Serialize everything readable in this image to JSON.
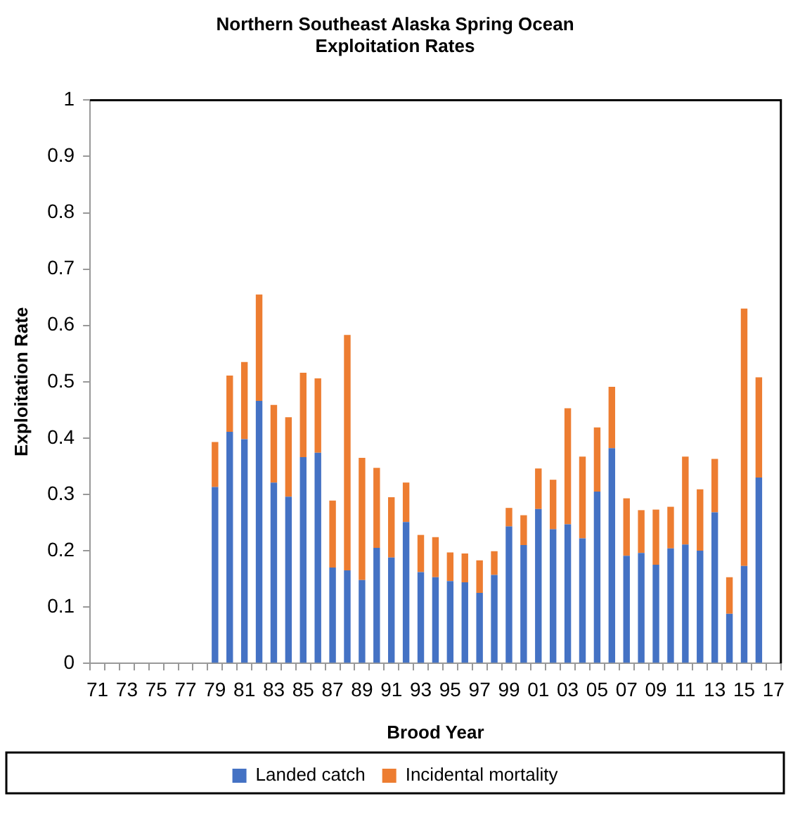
{
  "chart_data": {
    "type": "bar",
    "title": "Northern Southeast Alaska Spring Ocean Exploitation Rates",
    "xlabel": "Brood Year",
    "ylabel": "Exploitation Rate",
    "categories": [
      "71",
      null,
      "73",
      null,
      "75",
      null,
      "77",
      null,
      "79",
      null,
      "81",
      null,
      "83",
      null,
      "85",
      null,
      "87",
      null,
      "89",
      null,
      "91",
      null,
      "93",
      null,
      "95",
      null,
      "97",
      null,
      "99",
      null,
      "01",
      null,
      "03",
      null,
      "05",
      null,
      "07",
      null,
      "09",
      null,
      "11",
      null,
      "13",
      null,
      "15",
      null,
      "17"
    ],
    "stacked": true,
    "ylim": [
      0,
      1
    ],
    "yticks": [
      0,
      0.1,
      0.2,
      0.3,
      0.4,
      0.5,
      0.6,
      0.7,
      0.8,
      0.9,
      1
    ],
    "legend": "bottom",
    "series": [
      {
        "name": "Landed catch",
        "color": "#4472c4",
        "values": [
          null,
          null,
          null,
          null,
          null,
          null,
          null,
          null,
          0.313,
          0.411,
          0.398,
          0.466,
          0.321,
          0.296,
          0.366,
          0.374,
          0.17,
          0.165,
          0.148,
          0.205,
          0.188,
          0.251,
          0.162,
          0.153,
          0.146,
          0.144,
          0.125,
          0.157,
          0.243,
          0.21,
          0.274,
          0.238,
          0.247,
          0.222,
          0.305,
          0.382,
          0.191,
          0.196,
          0.175,
          0.204,
          0.211,
          0.2,
          0.268,
          0.088,
          0.173,
          0.33,
          null
        ]
      },
      {
        "name": "Incidental mortality",
        "color": "#ed7d31",
        "values": [
          null,
          null,
          null,
          null,
          null,
          null,
          null,
          null,
          0.08,
          0.1,
          0.137,
          0.189,
          0.138,
          0.141,
          0.15,
          0.132,
          0.119,
          0.418,
          0.217,
          0.142,
          0.107,
          0.07,
          0.066,
          0.071,
          0.051,
          0.051,
          0.058,
          0.042,
          0.033,
          0.053,
          0.072,
          0.088,
          0.206,
          0.145,
          0.114,
          0.109,
          0.102,
          0.076,
          0.098,
          0.074,
          0.156,
          0.109,
          0.095,
          0.065,
          0.457,
          0.178,
          null
        ]
      }
    ]
  }
}
